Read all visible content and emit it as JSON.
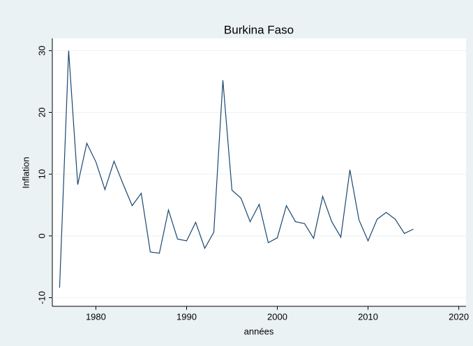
{
  "chart_data": {
    "type": "line",
    "title": "Burkina Faso",
    "x_label": "années",
    "y_label": "Inflation",
    "x": [
      1976,
      1977,
      1978,
      1979,
      1980,
      1981,
      1982,
      1983,
      1984,
      1985,
      1986,
      1987,
      1988,
      1989,
      1990,
      1991,
      1992,
      1993,
      1994,
      1995,
      1996,
      1997,
      1998,
      1999,
      2000,
      2001,
      2002,
      2003,
      2004,
      2005,
      2006,
      2007,
      2008,
      2009,
      2010,
      2011,
      2012,
      2013,
      2014,
      2015
    ],
    "values": [
      -8.4,
      30.0,
      8.3,
      15.0,
      12.0,
      7.5,
      12.1,
      8.4,
      4.9,
      6.9,
      -2.6,
      -2.8,
      4.2,
      -0.5,
      -0.8,
      2.2,
      -2.0,
      0.6,
      25.2,
      7.4,
      6.1,
      2.3,
      5.1,
      -1.1,
      -0.3,
      4.9,
      2.3,
      2.0,
      -0.4,
      6.4,
      2.3,
      -0.2,
      10.7,
      2.6,
      -0.8,
      2.7,
      3.8,
      2.7,
      0.4,
      1.1
    ],
    "color": "#1a476f",
    "xlim": [
      1975.2,
      2020.8
    ],
    "xticks": [
      1980,
      1990,
      2000,
      2010,
      2020
    ],
    "ylim": [
      -11.4,
      32
    ],
    "yticks": [
      -10,
      0,
      10,
      20,
      30
    ],
    "grid": true
  }
}
